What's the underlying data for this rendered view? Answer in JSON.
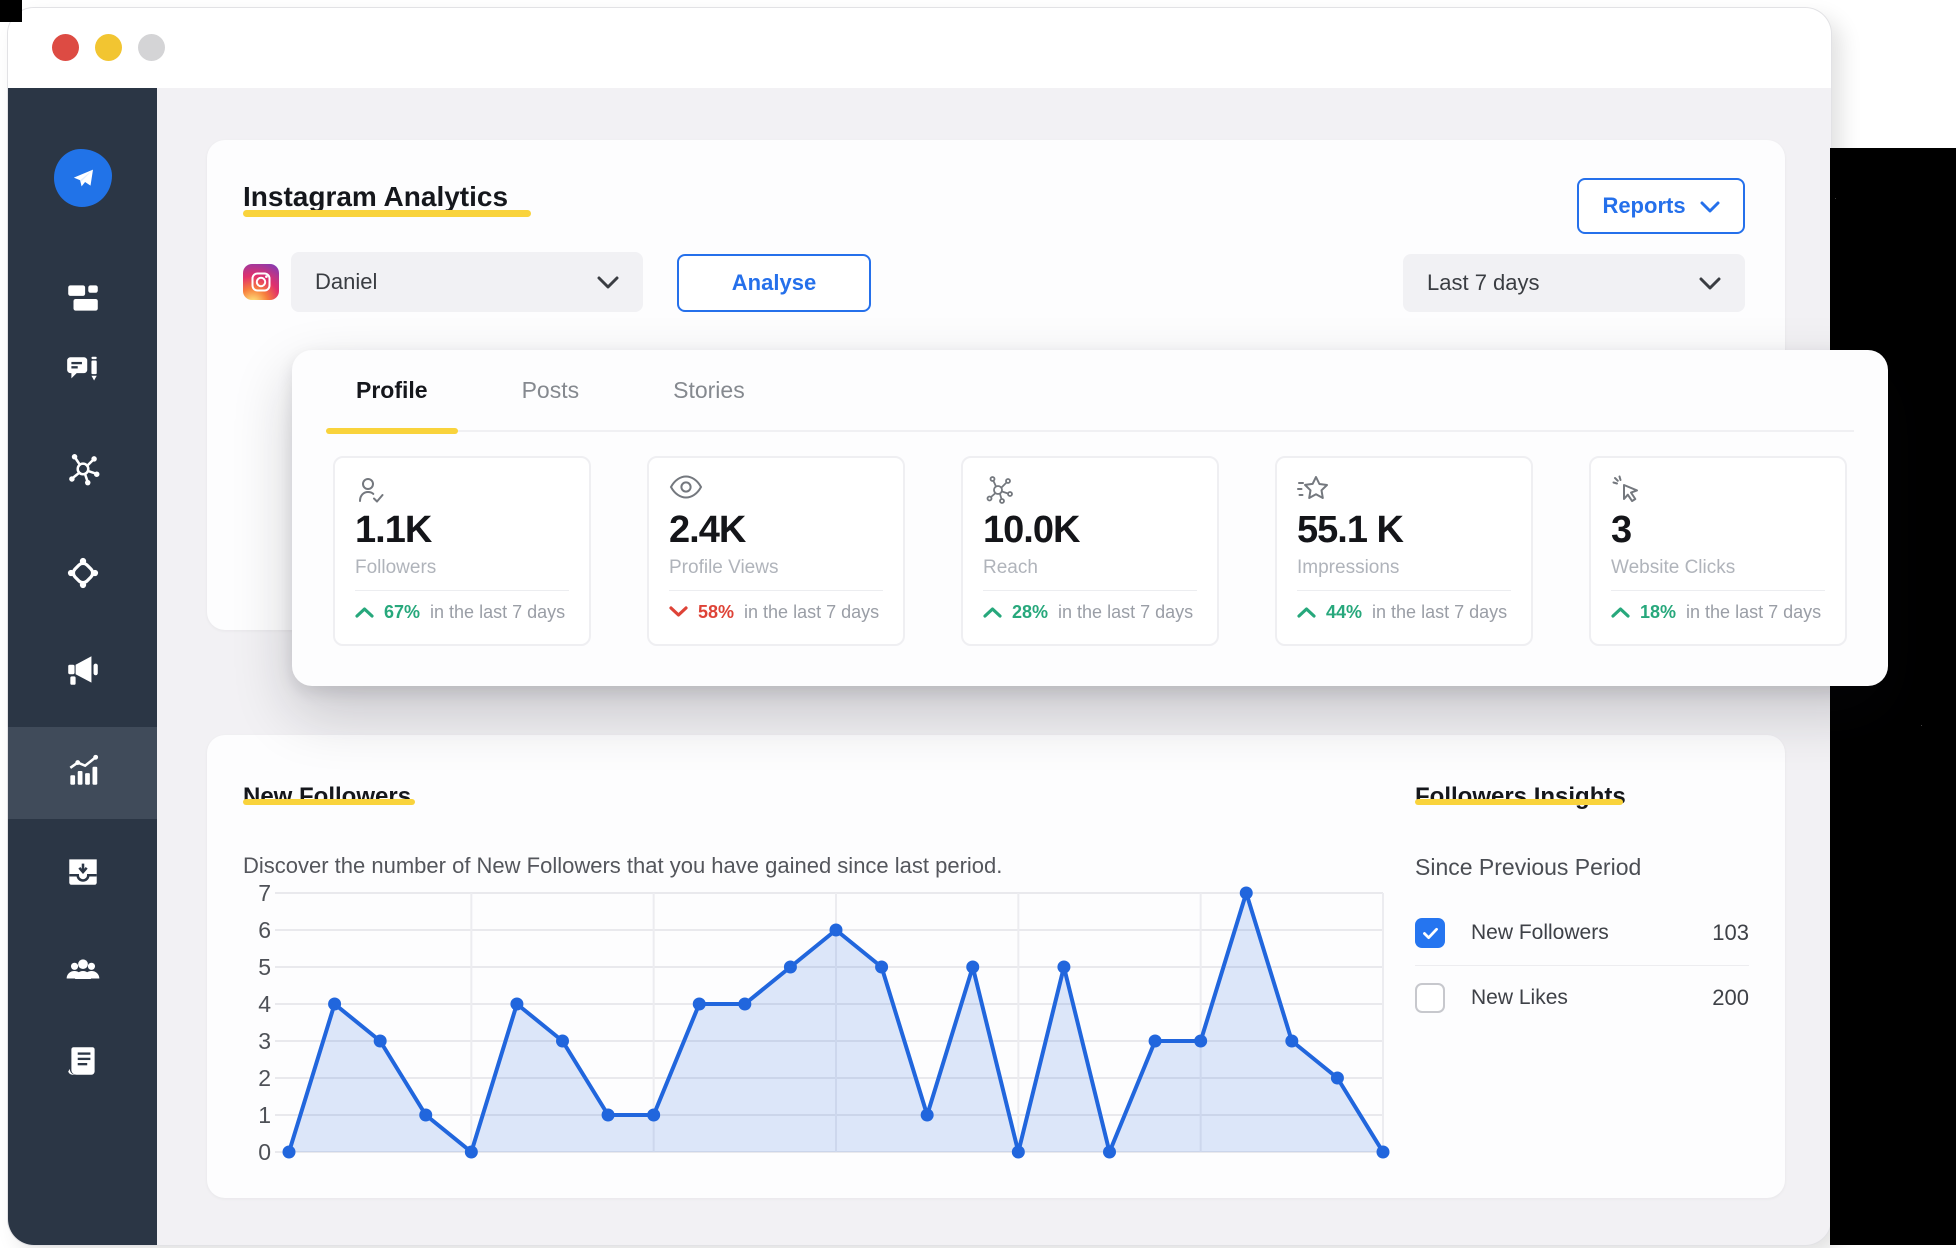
{
  "window": {
    "traffic_lights": [
      "close",
      "minimize",
      "maximize"
    ]
  },
  "sidebar": {
    "logo_icon": "send-logo",
    "items": [
      {
        "icon": "dashboard",
        "active": false
      },
      {
        "icon": "conversations",
        "active": false
      },
      {
        "icon": "network",
        "active": false
      },
      {
        "icon": "connections",
        "active": false
      },
      {
        "icon": "announcements",
        "active": false
      },
      {
        "icon": "analytics",
        "active": true
      },
      {
        "icon": "inbox",
        "active": false
      },
      {
        "icon": "team",
        "active": false
      },
      {
        "icon": "reports-doc",
        "active": false
      }
    ]
  },
  "header": {
    "title": "Instagram Analytics",
    "reports_label": "Reports",
    "account_name": "Daniel",
    "account_network_icon": "instagram-icon",
    "analyse_label": "Analyse",
    "date_range": "Last 7 days"
  },
  "tabs": [
    {
      "label": "Profile",
      "active": true
    },
    {
      "label": "Posts",
      "active": false
    },
    {
      "label": "Stories",
      "active": false
    }
  ],
  "stats": [
    {
      "icon": "user-check",
      "value": "1.1K",
      "label": "Followers",
      "delta": "67%",
      "direction": "up",
      "suffix": "in the last 7 days"
    },
    {
      "icon": "eye",
      "value": "2.4K",
      "label": "Profile Views",
      "delta": "58%",
      "direction": "down",
      "suffix": "in the last 7 days"
    },
    {
      "icon": "reach-network",
      "value": "10.0K",
      "label": "Reach",
      "delta": "28%",
      "direction": "up",
      "suffix": "in the last 7 days"
    },
    {
      "icon": "star",
      "value": "55.1 K",
      "label": "Impressions",
      "delta": "44%",
      "direction": "up",
      "suffix": "in the last 7 days"
    },
    {
      "icon": "cursor-click",
      "value": "3",
      "label": "Website Clicks",
      "delta": "18%",
      "direction": "up",
      "suffix": "in the last 7 days"
    }
  ],
  "new_followers": {
    "title": "New Followers",
    "description": "Discover the number of New Followers that you have gained since last period."
  },
  "insights": {
    "title": "Followers Insights",
    "subtitle": "Since Previous Period",
    "rows": [
      {
        "label": "New Followers",
        "value": "103",
        "checked": true
      },
      {
        "label": "New Likes",
        "value": "200",
        "checked": false
      }
    ]
  },
  "chart_data": {
    "type": "area",
    "title": "New Followers",
    "values": [
      0,
      4,
      3,
      1,
      0,
      4,
      3,
      1,
      1,
      4,
      4,
      5,
      6,
      5,
      1,
      5,
      0,
      5,
      0,
      3,
      3,
      7,
      3,
      2,
      0
    ],
    "ylim": [
      0,
      7
    ],
    "yticks": [
      0,
      1,
      2,
      3,
      4,
      5,
      6,
      7
    ],
    "x_tick_labels": [],
    "grid": true,
    "vertical_gridline_every": 4,
    "line_color": "#2166DD",
    "fill_color": "rgba(33,102,221,0.15)",
    "point_color": "#2166DD",
    "legend_position": "none"
  },
  "colors": {
    "accent_blue": "#2570EB",
    "chart_blue": "#2166DD",
    "brand_yellow": "#F9D33C",
    "positive_green": "#27A87C",
    "negative_red": "#DE4337",
    "sidebar_navy": "#2B3645"
  }
}
